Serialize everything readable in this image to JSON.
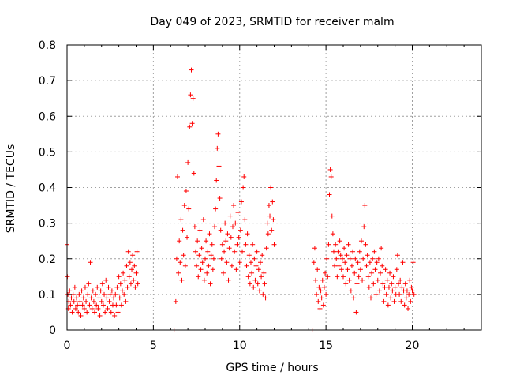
{
  "chart_data": {
    "type": "scatter",
    "title": "Day 049 of 2023, SRMTID for receiver malm",
    "xlabel": "GPS time / hours",
    "ylabel": "SRMTID / TECUs",
    "xlim": [
      0,
      24
    ],
    "ylim": [
      0,
      0.8
    ],
    "xticks": [
      0,
      5,
      10,
      15,
      20
    ],
    "xtick_labels": [
      "0",
      "5",
      "10",
      "15",
      "20"
    ],
    "yticks": [
      0,
      0.1,
      0.2,
      0.3,
      0.4,
      0.5,
      0.6,
      0.7,
      0.8
    ],
    "ytick_labels": [
      "0",
      "0.1",
      "0.2",
      "0.3",
      "0.4",
      "0.5",
      "0.6",
      "0.7",
      "0.8"
    ],
    "grid": true,
    "marker": "plus",
    "color": "#ff0000",
    "series": [
      {
        "name": "SRMTID",
        "points": [
          [
            0.0,
            0.24
          ],
          [
            0.02,
            0.15
          ],
          [
            0.05,
            0.1
          ],
          [
            0.08,
            0.06
          ],
          [
            0.1,
            0.08
          ],
          [
            0.15,
            0.11
          ],
          [
            0.2,
            0.07
          ],
          [
            0.25,
            0.09
          ],
          [
            0.3,
            0.05
          ],
          [
            0.35,
            0.1
          ],
          [
            0.4,
            0.08
          ],
          [
            0.45,
            0.12
          ],
          [
            0.5,
            0.06
          ],
          [
            0.55,
            0.09
          ],
          [
            0.6,
            0.07
          ],
          [
            0.65,
            0.05
          ],
          [
            0.7,
            0.1
          ],
          [
            0.75,
            0.08
          ],
          [
            0.8,
            0.04
          ],
          [
            0.85,
            0.11
          ],
          [
            0.9,
            0.07
          ],
          [
            0.95,
            0.09
          ],
          [
            1.0,
            0.06
          ],
          [
            1.05,
            0.12
          ],
          [
            1.1,
            0.08
          ],
          [
            1.15,
            0.05
          ],
          [
            1.2,
            0.1
          ],
          [
            1.25,
            0.13
          ],
          [
            1.3,
            0.07
          ],
          [
            1.35,
            0.19
          ],
          [
            1.4,
            0.09
          ],
          [
            1.45,
            0.06
          ],
          [
            1.5,
            0.11
          ],
          [
            1.55,
            0.08
          ],
          [
            1.6,
            0.05
          ],
          [
            1.65,
            0.1
          ],
          [
            1.7,
            0.07
          ],
          [
            1.75,
            0.12
          ],
          [
            1.8,
            0.06
          ],
          [
            1.85,
            0.09
          ],
          [
            1.9,
            0.04
          ],
          [
            1.95,
            0.11
          ],
          [
            2.0,
            0.08
          ],
          [
            2.05,
            0.13
          ],
          [
            2.1,
            0.07
          ],
          [
            2.15,
            0.1
          ],
          [
            2.2,
            0.05
          ],
          [
            2.25,
            0.14
          ],
          [
            2.3,
            0.09
          ],
          [
            2.35,
            0.06
          ],
          [
            2.4,
            0.12
          ],
          [
            2.45,
            0.08
          ],
          [
            2.5,
            0.1
          ],
          [
            2.55,
            0.05
          ],
          [
            2.6,
            0.11
          ],
          [
            2.65,
            0.07
          ],
          [
            2.7,
            0.09
          ],
          [
            2.75,
            0.04
          ],
          [
            2.8,
            0.1
          ],
          [
            2.85,
            0.07
          ],
          [
            2.9,
            0.12
          ],
          [
            2.95,
            0.05
          ],
          [
            3.0,
            0.15
          ],
          [
            3.05,
            0.09
          ],
          [
            3.1,
            0.13
          ],
          [
            3.15,
            0.07
          ],
          [
            3.2,
            0.11
          ],
          [
            3.25,
            0.16
          ],
          [
            3.3,
            0.1
          ],
          [
            3.35,
            0.14
          ],
          [
            3.4,
            0.08
          ],
          [
            3.45,
            0.18
          ],
          [
            3.5,
            0.12
          ],
          [
            3.55,
            0.22
          ],
          [
            3.6,
            0.15
          ],
          [
            3.65,
            0.19
          ],
          [
            3.7,
            0.13
          ],
          [
            3.75,
            0.17
          ],
          [
            3.8,
            0.21
          ],
          [
            3.85,
            0.14
          ],
          [
            3.9,
            0.18
          ],
          [
            3.95,
            0.12
          ],
          [
            4.0,
            0.16
          ],
          [
            4.05,
            0.22
          ],
          [
            4.1,
            0.13
          ],
          [
            6.2,
            0.0
          ],
          [
            6.3,
            0.08
          ],
          [
            6.35,
            0.2
          ],
          [
            6.4,
            0.43
          ],
          [
            6.45,
            0.16
          ],
          [
            6.5,
            0.25
          ],
          [
            6.55,
            0.19
          ],
          [
            6.6,
            0.31
          ],
          [
            6.65,
            0.14
          ],
          [
            6.7,
            0.28
          ],
          [
            6.75,
            0.21
          ],
          [
            6.8,
            0.35
          ],
          [
            6.85,
            0.18
          ],
          [
            6.9,
            0.39
          ],
          [
            6.95,
            0.26
          ],
          [
            7.0,
            0.47
          ],
          [
            7.05,
            0.34
          ],
          [
            7.1,
            0.57
          ],
          [
            7.15,
            0.66
          ],
          [
            7.2,
            0.73
          ],
          [
            7.25,
            0.58
          ],
          [
            7.3,
            0.65
          ],
          [
            7.35,
            0.44
          ],
          [
            7.4,
            0.29
          ],
          [
            7.45,
            0.22
          ],
          [
            7.5,
            0.18
          ],
          [
            7.55,
            0.25
          ],
          [
            7.6,
            0.15
          ],
          [
            7.65,
            0.21
          ],
          [
            7.7,
            0.28
          ],
          [
            7.75,
            0.17
          ],
          [
            7.8,
            0.23
          ],
          [
            7.85,
            0.19
          ],
          [
            7.9,
            0.31
          ],
          [
            7.95,
            0.14
          ],
          [
            8.0,
            0.2
          ],
          [
            8.05,
            0.25
          ],
          [
            8.1,
            0.16
          ],
          [
            8.15,
            0.22
          ],
          [
            8.2,
            0.18
          ],
          [
            8.25,
            0.27
          ],
          [
            8.3,
            0.13
          ],
          [
            8.35,
            0.21
          ],
          [
            8.4,
            0.24
          ],
          [
            8.45,
            0.17
          ],
          [
            8.5,
            0.2
          ],
          [
            8.55,
            0.29
          ],
          [
            8.6,
            0.34
          ],
          [
            8.65,
            0.42
          ],
          [
            8.7,
            0.51
          ],
          [
            8.75,
            0.55
          ],
          [
            8.8,
            0.46
          ],
          [
            8.85,
            0.37
          ],
          [
            8.9,
            0.28
          ],
          [
            8.95,
            0.2
          ],
          [
            9.0,
            0.24
          ],
          [
            9.05,
            0.16
          ],
          [
            9.1,
            0.22
          ],
          [
            9.15,
            0.3
          ],
          [
            9.2,
            0.25
          ],
          [
            9.25,
            0.19
          ],
          [
            9.3,
            0.27
          ],
          [
            9.35,
            0.14
          ],
          [
            9.4,
            0.23
          ],
          [
            9.45,
            0.32
          ],
          [
            9.5,
            0.26
          ],
          [
            9.55,
            0.18
          ],
          [
            9.6,
            0.29
          ],
          [
            9.65,
            0.35
          ],
          [
            9.7,
            0.22
          ],
          [
            9.75,
            0.3
          ],
          [
            9.8,
            0.17
          ],
          [
            9.85,
            0.24
          ],
          [
            9.9,
            0.33
          ],
          [
            9.95,
            0.26
          ],
          [
            10.0,
            0.19
          ],
          [
            10.05,
            0.28
          ],
          [
            10.1,
            0.36
          ],
          [
            10.15,
            0.22
          ],
          [
            10.2,
            0.4
          ],
          [
            10.25,
            0.43
          ],
          [
            10.3,
            0.31
          ],
          [
            10.35,
            0.24
          ],
          [
            10.4,
            0.18
          ],
          [
            10.45,
            0.27
          ],
          [
            10.5,
            0.15
          ],
          [
            10.55,
            0.21
          ],
          [
            10.6,
            0.13
          ],
          [
            10.65,
            0.19
          ],
          [
            10.7,
            0.16
          ],
          [
            10.75,
            0.24
          ],
          [
            10.8,
            0.12
          ],
          [
            10.85,
            0.2
          ],
          [
            10.9,
            0.14
          ],
          [
            10.95,
            0.18
          ],
          [
            11.0,
            0.22
          ],
          [
            11.05,
            0.13
          ],
          [
            11.1,
            0.17
          ],
          [
            11.15,
            0.11
          ],
          [
            11.2,
            0.19
          ],
          [
            11.25,
            0.15
          ],
          [
            11.3,
            0.21
          ],
          [
            11.35,
            0.1
          ],
          [
            11.4,
            0.16
          ],
          [
            11.45,
            0.13
          ],
          [
            11.5,
            0.09
          ],
          [
            11.55,
            0.23
          ],
          [
            11.6,
            0.3
          ],
          [
            11.65,
            0.27
          ],
          [
            11.7,
            0.35
          ],
          [
            11.75,
            0.32
          ],
          [
            11.8,
            0.4
          ],
          [
            11.85,
            0.28
          ],
          [
            11.9,
            0.36
          ],
          [
            11.95,
            0.31
          ],
          [
            12.0,
            0.24
          ],
          [
            14.2,
            0.0
          ],
          [
            14.3,
            0.19
          ],
          [
            14.35,
            0.23
          ],
          [
            14.4,
            0.14
          ],
          [
            14.45,
            0.1
          ],
          [
            14.5,
            0.17
          ],
          [
            14.55,
            0.08
          ],
          [
            14.6,
            0.12
          ],
          [
            14.65,
            0.06
          ],
          [
            14.7,
            0.11
          ],
          [
            14.75,
            0.09
          ],
          [
            14.8,
            0.14
          ],
          [
            14.85,
            0.07
          ],
          [
            14.9,
            0.12
          ],
          [
            14.95,
            0.16
          ],
          [
            15.0,
            0.1
          ],
          [
            15.05,
            0.2
          ],
          [
            15.1,
            0.15
          ],
          [
            15.15,
            0.24
          ],
          [
            15.2,
            0.38
          ],
          [
            15.25,
            0.45
          ],
          [
            15.3,
            0.43
          ],
          [
            15.35,
            0.32
          ],
          [
            15.4,
            0.27
          ],
          [
            15.45,
            0.22
          ],
          [
            15.5,
            0.18
          ],
          [
            15.55,
            0.24
          ],
          [
            15.6,
            0.2
          ],
          [
            15.65,
            0.15
          ],
          [
            15.7,
            0.22
          ],
          [
            15.75,
            0.18
          ],
          [
            15.8,
            0.25
          ],
          [
            15.85,
            0.21
          ],
          [
            15.9,
            0.17
          ],
          [
            15.95,
            0.2
          ],
          [
            16.0,
            0.15
          ],
          [
            16.05,
            0.23
          ],
          [
            16.1,
            0.19
          ],
          [
            16.15,
            0.13
          ],
          [
            16.2,
            0.21
          ],
          [
            16.25,
            0.17
          ],
          [
            16.3,
            0.24
          ],
          [
            16.35,
            0.14
          ],
          [
            16.4,
            0.2
          ],
          [
            16.45,
            0.11
          ],
          [
            16.5,
            0.18
          ],
          [
            16.55,
            0.22
          ],
          [
            16.6,
            0.09
          ],
          [
            16.65,
            0.16
          ],
          [
            16.7,
            0.2
          ],
          [
            16.75,
            0.05
          ],
          [
            16.8,
            0.13
          ],
          [
            16.85,
            0.19
          ],
          [
            16.9,
            0.15
          ],
          [
            16.95,
            0.22
          ],
          [
            17.0,
            0.17
          ],
          [
            17.05,
            0.25
          ],
          [
            17.1,
            0.14
          ],
          [
            17.15,
            0.2
          ],
          [
            17.2,
            0.29
          ],
          [
            17.25,
            0.35
          ],
          [
            17.3,
            0.24
          ],
          [
            17.35,
            0.18
          ],
          [
            17.4,
            0.21
          ],
          [
            17.45,
            0.15
          ],
          [
            17.5,
            0.12
          ],
          [
            17.55,
            0.19
          ],
          [
            17.6,
            0.09
          ],
          [
            17.65,
            0.16
          ],
          [
            17.7,
            0.2
          ],
          [
            17.75,
            0.13
          ],
          [
            17.8,
            0.22
          ],
          [
            17.85,
            0.17
          ],
          [
            17.9,
            0.1
          ],
          [
            17.95,
            0.19
          ],
          [
            18.0,
            0.14
          ],
          [
            18.05,
            0.2
          ],
          [
            18.1,
            0.11
          ],
          [
            18.15,
            0.16
          ],
          [
            18.2,
            0.23
          ],
          [
            18.25,
            0.18
          ],
          [
            18.3,
            0.13
          ],
          [
            18.35,
            0.08
          ],
          [
            18.4,
            0.12
          ],
          [
            18.45,
            0.17
          ],
          [
            18.5,
            0.1
          ],
          [
            18.55,
            0.14
          ],
          [
            18.6,
            0.07
          ],
          [
            18.65,
            0.12
          ],
          [
            18.7,
            0.16
          ],
          [
            18.75,
            0.09
          ],
          [
            18.8,
            0.13
          ],
          [
            18.85,
            0.11
          ],
          [
            18.9,
            0.15
          ],
          [
            18.95,
            0.08
          ],
          [
            19.0,
            0.12
          ],
          [
            19.05,
            0.1
          ],
          [
            19.1,
            0.17
          ],
          [
            19.15,
            0.21
          ],
          [
            19.2,
            0.13
          ],
          [
            19.25,
            0.1
          ],
          [
            19.3,
            0.14
          ],
          [
            19.35,
            0.08
          ],
          [
            19.4,
            0.12
          ],
          [
            19.45,
            0.19
          ],
          [
            19.5,
            0.11
          ],
          [
            19.55,
            0.07
          ],
          [
            19.6,
            0.13
          ],
          [
            19.65,
            0.09
          ],
          [
            19.7,
            0.11
          ],
          [
            19.75,
            0.06
          ],
          [
            19.8,
            0.1
          ],
          [
            19.85,
            0.14
          ],
          [
            19.9,
            0.08
          ],
          [
            19.95,
            0.12
          ],
          [
            20.0,
            0.11
          ],
          [
            20.05,
            0.19
          ],
          [
            20.1,
            0.1
          ]
        ]
      }
    ]
  }
}
